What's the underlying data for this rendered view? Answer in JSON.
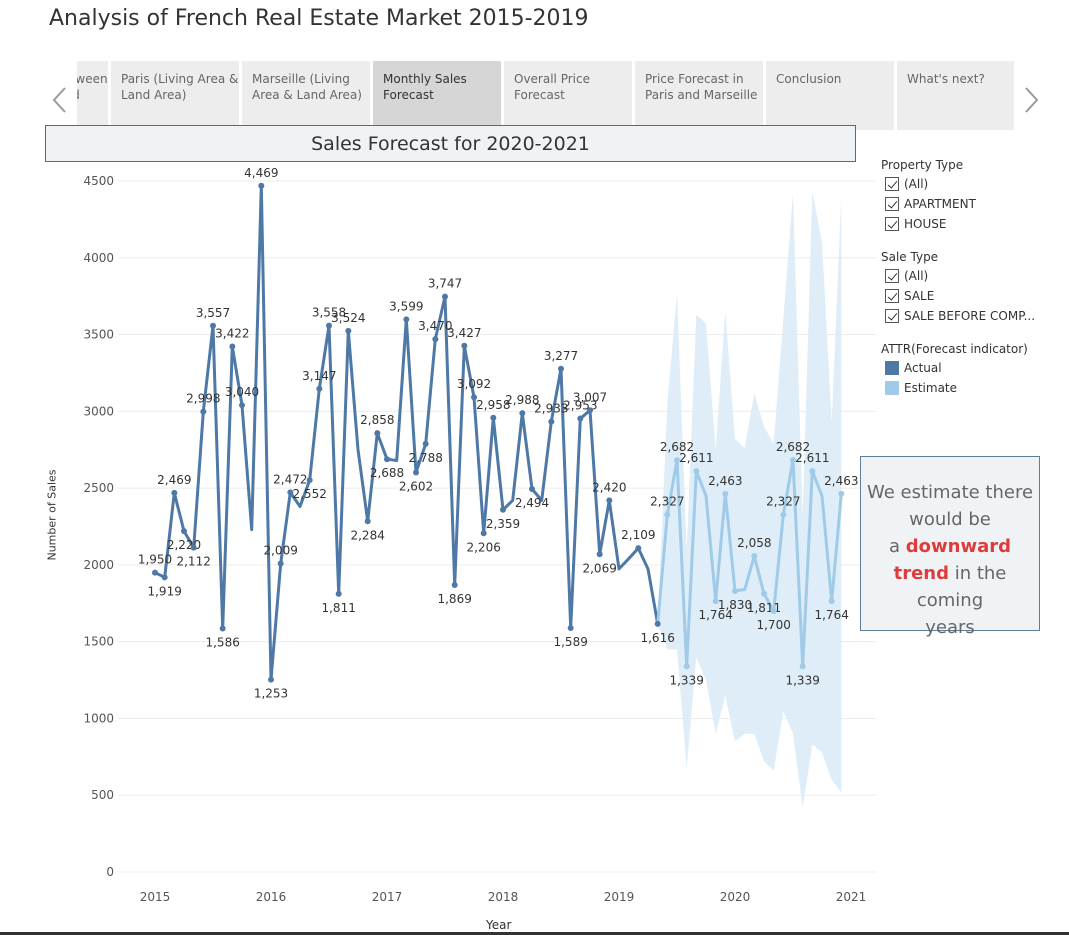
{
  "story": {
    "title": "Analysis of French Real Estate Market 2015-2019",
    "tabs": [
      {
        "label": "Difference between Sales Type and Property",
        "active": false
      },
      {
        "label": "Paris (Living Area & Land Area)",
        "active": false
      },
      {
        "label": "Marseille (Living Area & Land Area)",
        "active": false
      },
      {
        "label": "Monthly Sales Forecast",
        "active": true
      },
      {
        "label": "Overall Price Forecast",
        "active": false
      },
      {
        "label": "Price Forecast in Paris and Marseille",
        "active": false
      },
      {
        "label": "Conclusion",
        "active": false
      },
      {
        "label": "What's next?",
        "active": false
      }
    ]
  },
  "chart_title": "Sales Forecast for 2020-2021",
  "filters": {
    "property_type": {
      "title": "Property Type",
      "items": [
        "(All)",
        "APARTMENT",
        "HOUSE"
      ]
    },
    "sale_type": {
      "title": "Sale Type",
      "items": [
        "(All)",
        "SALE",
        "SALE BEFORE COMP..."
      ]
    }
  },
  "legend": {
    "title": "ATTR(Forecast indicator)",
    "items": [
      {
        "label": "Actual",
        "color": "#4e79a7"
      },
      {
        "label": "Estimate",
        "color": "#a0cbe8"
      }
    ]
  },
  "annotation": {
    "line1": "We estimate there",
    "line2": "would be",
    "line3_pre": "a ",
    "line3_hl": "downward",
    "line4_hl": "trend",
    "line4_post": " in the coming",
    "line5": "years"
  },
  "colors": {
    "actual": "#4e79a7",
    "estimate": "#a0cbe8",
    "band": "#deedf7",
    "highlight": "#e03b3b"
  },
  "chart_data": {
    "type": "line",
    "xlabel": "Year",
    "ylabel": "Number of Sales",
    "ylim": [
      0,
      4500
    ],
    "yticks": [
      0,
      500,
      1000,
      1500,
      2000,
      2500,
      3000,
      3500,
      4000,
      4500
    ],
    "xticks": [
      "2015",
      "2016",
      "2017",
      "2018",
      "2019",
      "2020",
      "2021"
    ],
    "xlim": [
      "2015-01",
      "2021-01"
    ],
    "grid": true,
    "legend_position": "right",
    "series": [
      {
        "name": "Actual",
        "points": [
          {
            "x": "2015-01",
            "y": 1950,
            "label": "1,950"
          },
          {
            "x": "2015-02",
            "y": 1919,
            "label": "1,919"
          },
          {
            "x": "2015-03",
            "y": 2469,
            "label": "2,469"
          },
          {
            "x": "2015-04",
            "y": 2220,
            "label": "2,220"
          },
          {
            "x": "2015-05",
            "y": 2112,
            "label": "2,112"
          },
          {
            "x": "2015-06",
            "y": 2998,
            "label": "2,998"
          },
          {
            "x": "2015-07",
            "y": 3557,
            "label": "3,557"
          },
          {
            "x": "2015-08",
            "y": 1586,
            "label": "1,586"
          },
          {
            "x": "2015-09",
            "y": 3422,
            "label": "3,422"
          },
          {
            "x": "2015-10",
            "y": 3040,
            "label": "3,040"
          },
          {
            "x": "2015-11",
            "y": 2230,
            "label": ""
          },
          {
            "x": "2015-12",
            "y": 4469,
            "label": "4,469"
          },
          {
            "x": "2016-01",
            "y": 1253,
            "label": "1,253"
          },
          {
            "x": "2016-02",
            "y": 2009,
            "label": "2,009"
          },
          {
            "x": "2016-03",
            "y": 2472,
            "label": "2,472"
          },
          {
            "x": "2016-04",
            "y": 2380,
            "label": ""
          },
          {
            "x": "2016-05",
            "y": 2552,
            "label": "2,552"
          },
          {
            "x": "2016-06",
            "y": 3147,
            "label": "3,147"
          },
          {
            "x": "2016-07",
            "y": 3558,
            "label": "3,558"
          },
          {
            "x": "2016-08",
            "y": 1811,
            "label": "1,811"
          },
          {
            "x": "2016-09",
            "y": 3524,
            "label": "3,524"
          },
          {
            "x": "2016-10",
            "y": 2750,
            "label": ""
          },
          {
            "x": "2016-11",
            "y": 2284,
            "label": "2,284"
          },
          {
            "x": "2016-12",
            "y": 2858,
            "label": "2,858"
          },
          {
            "x": "2017-01",
            "y": 2688,
            "label": "2,688"
          },
          {
            "x": "2017-02",
            "y": 2680,
            "label": ""
          },
          {
            "x": "2017-03",
            "y": 3599,
            "label": "3,599"
          },
          {
            "x": "2017-04",
            "y": 2602,
            "label": "2,602"
          },
          {
            "x": "2017-05",
            "y": 2788,
            "label": "2,788"
          },
          {
            "x": "2017-06",
            "y": 3470,
            "label": "3,470"
          },
          {
            "x": "2017-07",
            "y": 3747,
            "label": "3,747"
          },
          {
            "x": "2017-08",
            "y": 1869,
            "label": "1,869"
          },
          {
            "x": "2017-09",
            "y": 3427,
            "label": "3,427"
          },
          {
            "x": "2017-10",
            "y": 3092,
            "label": "3,092"
          },
          {
            "x": "2017-11",
            "y": 2206,
            "label": "2,206"
          },
          {
            "x": "2017-12",
            "y": 2958,
            "label": "2,958"
          },
          {
            "x": "2018-01",
            "y": 2359,
            "label": "2,359"
          },
          {
            "x": "2018-02",
            "y": 2420,
            "label": ""
          },
          {
            "x": "2018-03",
            "y": 2988,
            "label": "2,988"
          },
          {
            "x": "2018-04",
            "y": 2494,
            "label": "2,494"
          },
          {
            "x": "2018-05",
            "y": 2420,
            "label": ""
          },
          {
            "x": "2018-06",
            "y": 2933,
            "label": "2,933"
          },
          {
            "x": "2018-07",
            "y": 3277,
            "label": "3,277"
          },
          {
            "x": "2018-08",
            "y": 1589,
            "label": "1,589"
          },
          {
            "x": "2018-09",
            "y": 2953,
            "label": "2,953"
          },
          {
            "x": "2018-10",
            "y": 3007,
            "label": "3,007"
          },
          {
            "x": "2018-11",
            "y": 2069,
            "label": "2,069"
          },
          {
            "x": "2018-12",
            "y": 2420,
            "label": "2,420"
          },
          {
            "x": "2019-01",
            "y": 1974,
            "label": ""
          },
          {
            "x": "2019-02",
            "y": 2040,
            "label": ""
          },
          {
            "x": "2019-03",
            "y": 2109,
            "label": "2,109"
          },
          {
            "x": "2019-04",
            "y": 1974,
            "label": ""
          },
          {
            "x": "2019-05",
            "y": 1616,
            "label": "1,616"
          }
        ]
      },
      {
        "name": "Estimate",
        "points": [
          {
            "x": "2019-05",
            "y": 1616,
            "label": ""
          },
          {
            "x": "2019-06",
            "y": 2327,
            "label": "2,327"
          },
          {
            "x": "2019-07",
            "y": 2682,
            "label": "2,682"
          },
          {
            "x": "2019-08",
            "y": 1339,
            "label": "1,339"
          },
          {
            "x": "2019-09",
            "y": 2611,
            "label": "2,611"
          },
          {
            "x": "2019-10",
            "y": 2450,
            "label": ""
          },
          {
            "x": "2019-11",
            "y": 1764,
            "label": "1,764"
          },
          {
            "x": "2019-12",
            "y": 2463,
            "label": "2,463"
          },
          {
            "x": "2020-01",
            "y": 1830,
            "label": "1,830"
          },
          {
            "x": "2020-02",
            "y": 1840,
            "label": ""
          },
          {
            "x": "2020-03",
            "y": 2058,
            "label": "2,058"
          },
          {
            "x": "2020-04",
            "y": 1811,
            "label": "1,811"
          },
          {
            "x": "2020-05",
            "y": 1700,
            "label": "1,700"
          },
          {
            "x": "2020-06",
            "y": 2327,
            "label": "2,327"
          },
          {
            "x": "2020-07",
            "y": 2682,
            "label": "2,682"
          },
          {
            "x": "2020-08",
            "y": 1339,
            "label": "1,339"
          },
          {
            "x": "2020-09",
            "y": 2611,
            "label": "2,611"
          },
          {
            "x": "2020-10",
            "y": 2450,
            "label": ""
          },
          {
            "x": "2020-11",
            "y": 1764,
            "label": "1,764"
          },
          {
            "x": "2020-12",
            "y": 2463,
            "label": "2,463"
          }
        ]
      }
    ],
    "prediction_interval": [
      {
        "x": "2019-05",
        "low": 1616,
        "high": 1616
      },
      {
        "x": "2019-06",
        "low": 1450,
        "high": 3050
      },
      {
        "x": "2019-07",
        "low": 1450,
        "high": 3770
      },
      {
        "x": "2019-08",
        "low": 680,
        "high": 2100
      },
      {
        "x": "2019-09",
        "low": 1400,
        "high": 3630
      },
      {
        "x": "2019-10",
        "low": 1250,
        "high": 3570
      },
      {
        "x": "2019-11",
        "low": 900,
        "high": 2750
      },
      {
        "x": "2019-12",
        "low": 1150,
        "high": 3650
      },
      {
        "x": "2020-01",
        "low": 850,
        "high": 2820
      },
      {
        "x": "2020-02",
        "low": 900,
        "high": 2760
      },
      {
        "x": "2020-03",
        "low": 900,
        "high": 3120
      },
      {
        "x": "2020-04",
        "low": 720,
        "high": 2900
      },
      {
        "x": "2020-05",
        "low": 660,
        "high": 2790
      },
      {
        "x": "2020-06",
        "low": 1050,
        "high": 3600
      },
      {
        "x": "2020-07",
        "low": 900,
        "high": 4420
      },
      {
        "x": "2020-08",
        "low": 420,
        "high": 2320
      },
      {
        "x": "2020-09",
        "low": 830,
        "high": 4430
      },
      {
        "x": "2020-10",
        "low": 780,
        "high": 4100
      },
      {
        "x": "2020-11",
        "low": 600,
        "high": 2930
      },
      {
        "x": "2020-12",
        "low": 520,
        "high": 4400
      }
    ]
  }
}
